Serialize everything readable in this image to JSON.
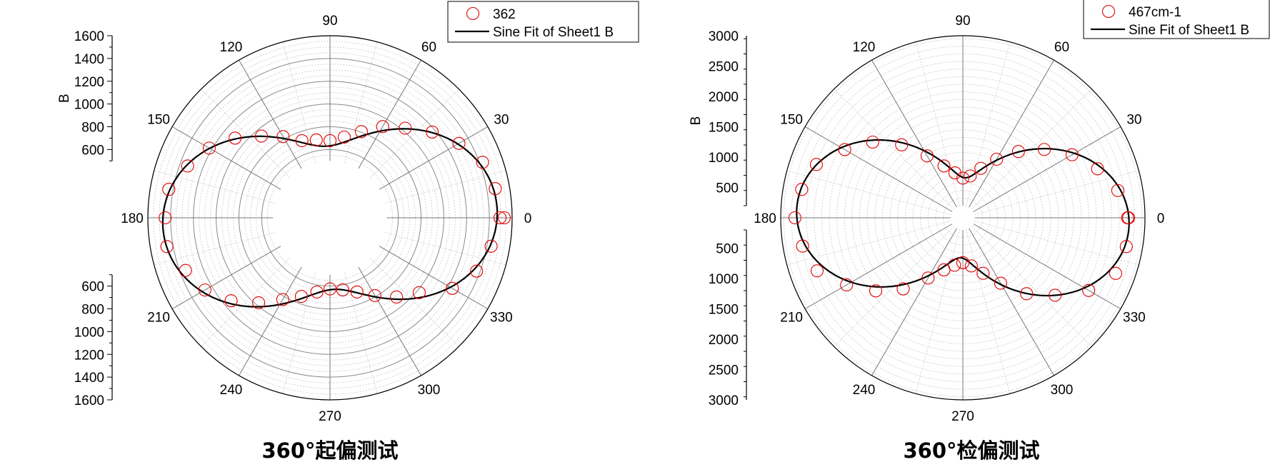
{
  "chart_data": [
    {
      "type": "scatter",
      "coordinate_system": "polar",
      "title": "360°起偏测试",
      "radial_label": "B",
      "radial_range": [
        500,
        1600
      ],
      "radial_ticks": [
        "600",
        "800",
        "1000",
        "1200",
        "1400",
        "1600"
      ],
      "radial_tick_values": [
        600,
        800,
        1000,
        1200,
        1400,
        1600
      ],
      "angle_ticks": [
        "0",
        "30",
        "60",
        "90",
        "120",
        "150",
        "180",
        "210",
        "240",
        "270",
        "300",
        "330"
      ],
      "legend": {
        "placement": "top-right",
        "entries": [
          "362",
          "Sine Fit of Sheet1 B"
        ]
      },
      "grid": true,
      "marker_color": "#e00000",
      "line_color": "#000000",
      "series": [
        {
          "name": "362",
          "theta": [
            0,
            10,
            20,
            30,
            40,
            50,
            60,
            70,
            80,
            90,
            100,
            110,
            120,
            130,
            140,
            150,
            160,
            170,
            180,
            190,
            200,
            210,
            220,
            230,
            240,
            250,
            260,
            270,
            280,
            290,
            300,
            310,
            320,
            330,
            340,
            350,
            360
          ],
          "r": [
            1493,
            1474,
            1426,
            1308,
            1172,
            1028,
            925,
            806,
            720,
            678,
            694,
            721,
            824,
            937,
            1089,
            1225,
            1331,
            1438,
            1448,
            1455,
            1351,
            1269,
            1134,
            975,
            830,
            735,
            662,
            625,
            643,
            693,
            789,
            909,
            1023,
            1240,
            1370,
            1437,
            1531
          ]
        }
      ],
      "fit": {
        "name": "Sine Fit of Sheet1 B",
        "y0": 1050,
        "amplitude": 420,
        "period_deg": 180,
        "phase_deg": 3
      }
    },
    {
      "type": "scatter",
      "coordinate_system": "polar",
      "title": "360°检偏测试",
      "radial_label": "B",
      "radial_range": [
        200,
        3000
      ],
      "radial_ticks": [
        "500",
        "1000",
        "1500",
        "2000",
        "2500",
        "3000"
      ],
      "radial_tick_values": [
        500,
        1000,
        1500,
        2000,
        2500,
        3000
      ],
      "angle_ticks": [
        "0",
        "30",
        "60",
        "90",
        "120",
        "150",
        "180",
        "210",
        "240",
        "270",
        "300",
        "330"
      ],
      "legend": {
        "placement": "top-right",
        "entries": [
          "467cm-1",
          "Sine Fit of Sheet1 B"
        ]
      },
      "grid": true,
      "marker_color": "#e00000",
      "line_color": "#000000",
      "series": [
        {
          "name": "467cm-1",
          "theta": [
            0,
            10,
            20,
            30,
            40,
            50,
            60,
            70,
            80,
            90,
            100,
            110,
            120,
            130,
            140,
            150,
            160,
            170,
            180,
            190,
            200,
            210,
            220,
            230,
            240,
            250,
            260,
            270,
            280,
            290,
            300,
            310,
            320,
            330,
            340,
            350,
            360
          ],
          "r": [
            2713,
            2591,
            2361,
            2077,
            1750,
            1425,
            1114,
            867,
            699,
            654,
            752,
            909,
            1178,
            1569,
            1940,
            2246,
            2568,
            2695,
            2766,
            2681,
            2555,
            2211,
            1873,
            1529,
            1145,
            913,
            793,
            739,
            805,
            973,
            1244,
            1633,
            1984,
            2393,
            2678,
            2733,
            2730
          ]
        }
      ],
      "fit": {
        "name": "Sine Fit of Sheet1 B",
        "y0": 1700,
        "amplitude": 1040,
        "period_deg": 180,
        "phase_deg": -3
      }
    }
  ]
}
